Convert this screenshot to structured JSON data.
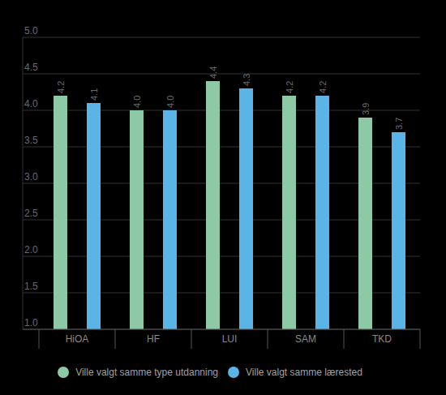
{
  "chart_data": {
    "type": "bar",
    "categories": [
      "HiOA",
      "HF",
      "LUI",
      "SAM",
      "TKD"
    ],
    "series": [
      {
        "name": "Ville valgt samme type utdanning",
        "color": "#8ec9a6",
        "values": [
          4.2,
          4.0,
          4.4,
          4.2,
          3.9
        ],
        "value_labels": [
          "4.2",
          "4.0",
          "4.4",
          "4.2",
          "3.9"
        ]
      },
      {
        "name": "Ville valgt samme lærested",
        "color": "#5ab4e6",
        "values": [
          4.1,
          4.0,
          4.3,
          4.2,
          3.7
        ],
        "value_labels": [
          "4.1",
          "4.0",
          "4.3",
          "4.2",
          "3.7"
        ]
      }
    ],
    "ylim": [
      1,
      5
    ],
    "yticks": [
      {
        "value": 1,
        "label": "1.0"
      },
      1.5,
      {
        "value": 2,
        "label": "2.0"
      },
      2.5,
      {
        "value": 3,
        "label": "3.0"
      },
      3.5,
      {
        "value": 4,
        "label": "4.0"
      },
      4.5,
      {
        "value": 5,
        "label": "5.0"
      }
    ],
    "grid": true,
    "legend": "bottom",
    "data_labels": true
  }
}
